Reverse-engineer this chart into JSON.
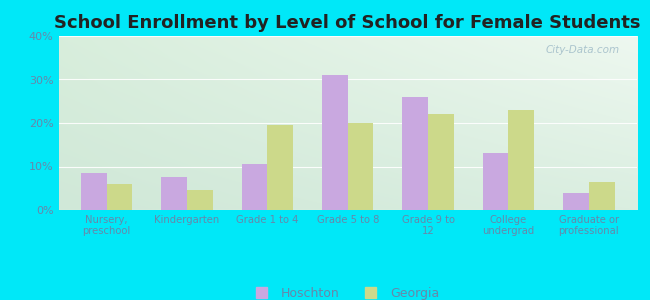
{
  "title": "School Enrollment by Level of School for Female Students",
  "categories": [
    "Nursery,\npreschool",
    "Kindergarten",
    "Grade 1 to 4",
    "Grade 5 to 8",
    "Grade 9 to\n12",
    "College\nundergrad",
    "Graduate or\nprofessional"
  ],
  "hoschton": [
    8.5,
    7.5,
    10.5,
    31.0,
    26.0,
    13.0,
    4.0
  ],
  "georgia": [
    6.0,
    4.5,
    19.5,
    20.0,
    22.0,
    23.0,
    6.5
  ],
  "hoschton_color": "#c9a8e0",
  "georgia_color": "#ccd98a",
  "background_color": "#00e8f8",
  "grad_color_topleft": "#d8eedc",
  "grad_color_topright": "#eef8f0",
  "grad_color_bottom": "#e0f0e8",
  "ylim": [
    0,
    40
  ],
  "yticks": [
    0,
    10,
    20,
    30,
    40
  ],
  "bar_width": 0.32,
  "watermark": "City-Data.com",
  "legend_hoschton": "Hoschton",
  "legend_georgia": "Georgia",
  "tick_color": "#6688aa",
  "title_color": "#222222",
  "title_fontsize": 13
}
